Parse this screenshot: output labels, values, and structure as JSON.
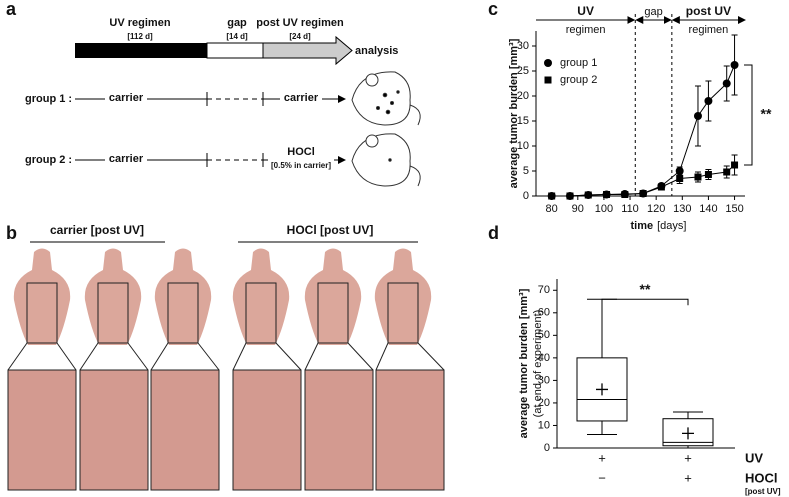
{
  "panel_a": {
    "label": "a",
    "phases": [
      "UV regimen",
      "gap",
      "post UV regimen"
    ],
    "durations": [
      "[112 d]",
      "[14 d]",
      "[24 d]"
    ],
    "endpoint": "analysis",
    "groups": [
      {
        "name": "group 1 :",
        "early": "carrier",
        "late": "carrier"
      },
      {
        "name": "group 2 :",
        "early": "carrier",
        "late": "HOCl",
        "note": "[0.5% in carrier]"
      }
    ]
  },
  "panel_b": {
    "label": "b",
    "groups": [
      "carrier [post UV]",
      "HOCl [post UV]"
    ]
  },
  "chart_data": [
    {
      "type": "line",
      "panel": "c",
      "ylabel": "average tumor burden [mm³]",
      "xlabel": "time",
      "xlabel_unit": "[days]",
      "x": [
        80,
        87,
        94,
        101,
        108,
        115,
        122,
        129,
        136,
        140,
        147,
        150
      ],
      "xlim": [
        74,
        154
      ],
      "xticks": [
        80,
        90,
        100,
        110,
        120,
        130,
        140,
        150
      ],
      "ylim": [
        0,
        33
      ],
      "yticks": [
        0,
        5,
        10,
        15,
        20,
        25,
        30
      ],
      "boundaries": [
        112,
        126
      ],
      "phases": [
        "UV",
        "regimen",
        "gap",
        "post UV",
        "regimen"
      ],
      "significance": "**",
      "legend": "upper left",
      "series": [
        {
          "name": "group 1",
          "color": "#000000",
          "marker": "circle",
          "values": [
            0,
            0,
            0.2,
            0.3,
            0.4,
            0.5,
            2,
            5,
            16,
            19,
            22.5,
            26.2
          ],
          "errors": [
            null,
            null,
            null,
            null,
            null,
            null,
            0.4,
            0.8,
            6,
            4,
            3.5,
            6
          ]
        },
        {
          "name": "group 2",
          "color": "#000000",
          "marker": "square",
          "values": [
            0,
            0,
            0.2,
            0.3,
            0.3,
            0.5,
            1.8,
            3.5,
            3.8,
            4.3,
            4.8,
            6.2
          ],
          "errors": [
            null,
            null,
            null,
            null,
            null,
            null,
            0.3,
            1,
            1,
            1,
            1.2,
            2
          ]
        }
      ]
    },
    {
      "type": "box",
      "panel": "d",
      "ylabel": "average tumor burden [mm³]",
      "ylabel2": "(at end of experiment)",
      "ylim": [
        0,
        75
      ],
      "yticks": [
        0,
        10,
        20,
        30,
        40,
        50,
        60,
        70
      ],
      "boxes": [
        {
          "min": 6,
          "q1": 12,
          "median": 21.5,
          "q3": 40,
          "max": 66,
          "mean": 26
        },
        {
          "min": 0,
          "q1": 1,
          "median": 2.5,
          "q3": 13,
          "max": 16,
          "mean": 6.5
        }
      ],
      "conditions": [
        {
          "label": "UV",
          "values": [
            "+",
            "+"
          ]
        },
        {
          "label": "HOCl",
          "sublabel": "[post UV]",
          "values": [
            "−",
            "+"
          ]
        }
      ],
      "significance": "**"
    }
  ]
}
